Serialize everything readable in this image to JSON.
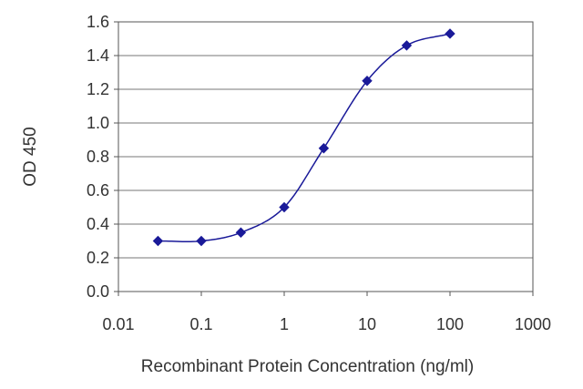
{
  "chart_data": {
    "type": "line",
    "title": "",
    "xlabel": "Recombinant Protein Concentration (ng/ml)",
    "ylabel": "OD 450",
    "x_scale": "log",
    "xlim": [
      0.01,
      1000
    ],
    "ylim": [
      0.0,
      1.6
    ],
    "x_ticks": [
      "0.01",
      "0.1",
      "1",
      "10",
      "100",
      "1000"
    ],
    "y_ticks": [
      "0.0",
      "0.2",
      "0.4",
      "0.6",
      "0.8",
      "1.0",
      "1.2",
      "1.4",
      "1.6"
    ],
    "grid": "horizontal",
    "legend": "none",
    "series": [
      {
        "x": [
          0.03,
          0.1,
          0.3,
          1,
          3,
          10,
          30,
          100
        ],
        "y": [
          0.3,
          0.3,
          0.35,
          0.5,
          0.85,
          1.25,
          1.46,
          1.53
        ],
        "color": "#1a1a99"
      }
    ]
  }
}
